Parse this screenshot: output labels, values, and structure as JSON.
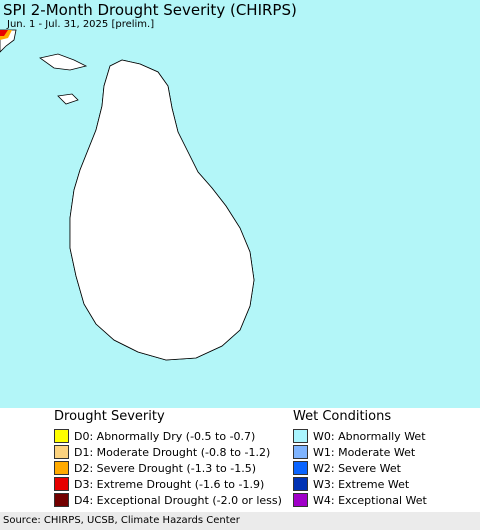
{
  "header": {
    "title": "SPI 2-Month Drought Severity (CHIRPS)",
    "subtitle": "Jun. 1 - Jul. 31, 2025 [prelim.]"
  },
  "map": {
    "colors": {
      "ocean": "#b3f6f8",
      "land_background": "#ffffff",
      "outline": "#000000",
      "district_border": "#7a7a7a"
    }
  },
  "legend": {
    "drought": {
      "heading": "Drought Severity",
      "items": [
        {
          "label": "D0: Abnormally Dry (-0.5 to -0.7)",
          "color": "#ffff00"
        },
        {
          "label": "D1: Moderate Drought (-0.8 to -1.2)",
          "color": "#fcd37f"
        },
        {
          "label": "D2: Severe Drought (-1.3 to -1.5)",
          "color": "#ffaa00"
        },
        {
          "label": "D3: Extreme Drought (-1.6 to -1.9)",
          "color": "#e60000"
        },
        {
          "label": "D4: Exceptional Drought (-2.0 or less)",
          "color": "#730000"
        }
      ]
    },
    "wet": {
      "heading": "Wet Conditions",
      "items": [
        {
          "label": "W0: Abnormally Wet",
          "color": "#aaf5ff"
        },
        {
          "label": "W1: Moderate Wet",
          "color": "#7fb4ff"
        },
        {
          "label": "W2: Severe Wet",
          "color": "#0a64ff"
        },
        {
          "label": "W3: Extreme Wet",
          "color": "#0032b4"
        },
        {
          "label": "W4: Exceptional Wet",
          "color": "#a000c8"
        }
      ]
    }
  },
  "footer": {
    "source": "Source: CHIRPS, UCSB, Climate Hazards Center"
  }
}
